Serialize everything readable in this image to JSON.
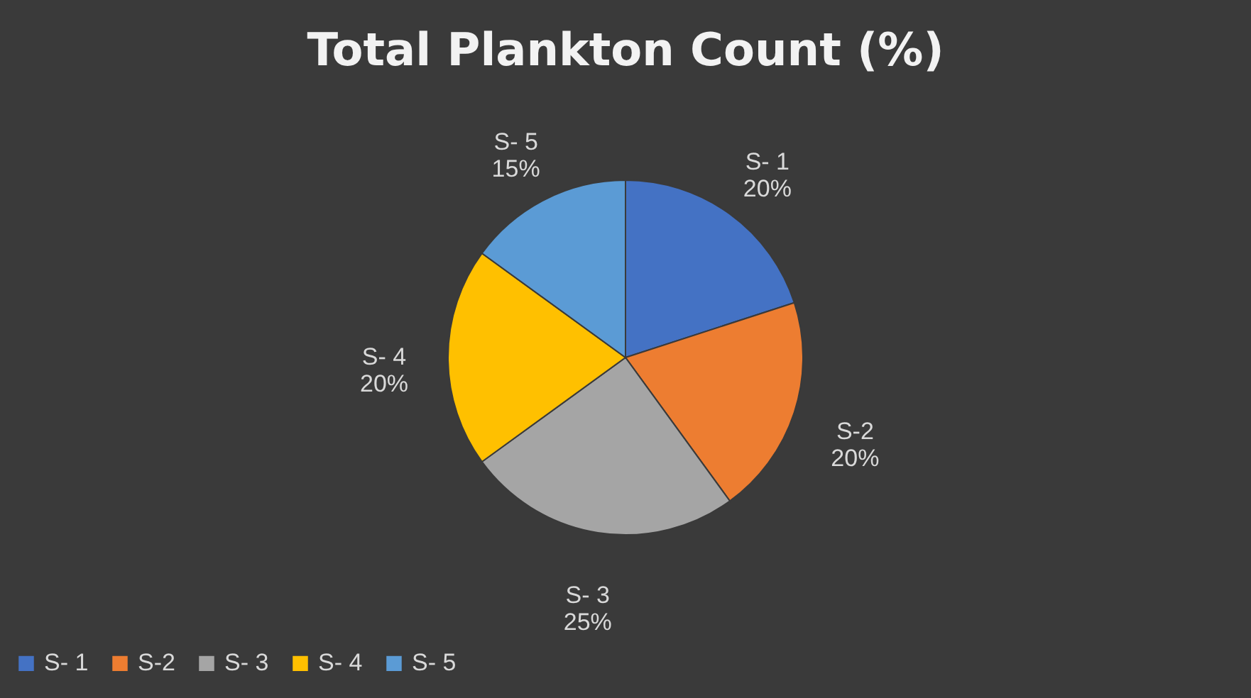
{
  "chart_data": {
    "type": "pie",
    "title": "Total Plankton Count (%)",
    "categories": [
      "S- 1",
      "S-2",
      "S- 3",
      "S- 4",
      "S- 5"
    ],
    "values": [
      20,
      20,
      25,
      20,
      15
    ],
    "value_labels": [
      "20%",
      "20%",
      "25%",
      "20%",
      "15%"
    ],
    "colors": [
      "#4472c4",
      "#ed7d31",
      "#a5a5a5",
      "#ffc000",
      "#5b9bd5"
    ],
    "legend": "bottom"
  }
}
